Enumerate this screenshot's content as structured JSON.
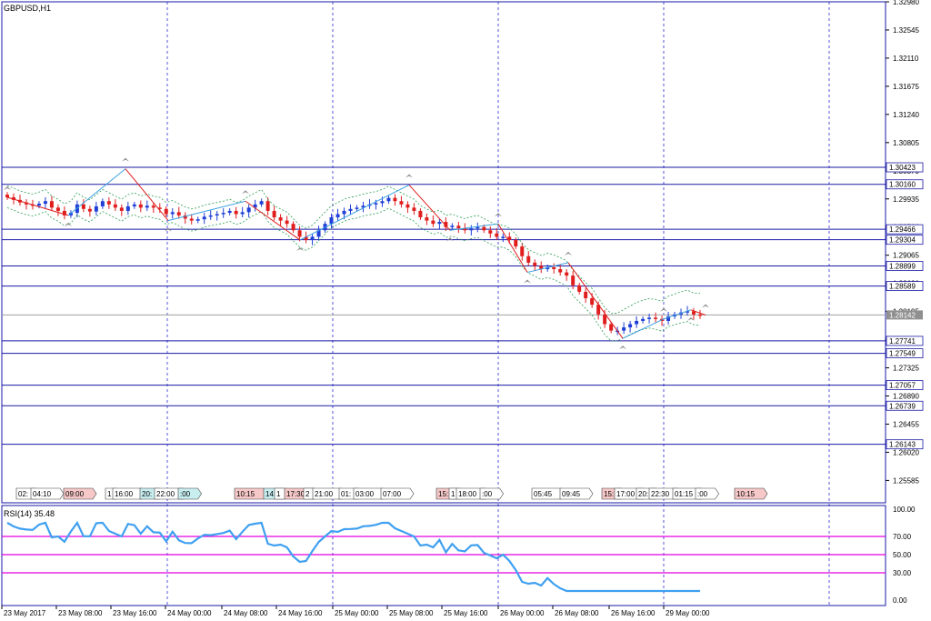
{
  "chart_title": "GBPUSD,H1",
  "rsi_label": "RSI(14) 35.48",
  "colors": {
    "axis": "#1a1aa6",
    "grid": "#2a2ad0",
    "bull": "#1f3fd6",
    "bear": "#e01e1e",
    "envelope": "#2e9d54",
    "zigzag_up": "#3aa0e0",
    "zigzag_down": "#e01e1e",
    "rsi_line": "#3fa0f0",
    "rsi_levels": "#e000e0",
    "current_price": "#a0a0a0"
  },
  "price_axis": {
    "ticks": [
      "1.32980",
      "1.32545",
      "1.32110",
      "1.31675",
      "1.31240",
      "1.30805",
      "1.30370",
      "1.29935",
      "1.29500",
      "1.29065",
      "1.28630",
      "1.28195",
      "1.27760",
      "1.27325",
      "1.26890",
      "1.26455",
      "1.26020",
      "1.25585"
    ],
    "min": 1.2538,
    "max": 1.3298
  },
  "horizontal_levels": [
    "1.30423",
    "1.30160",
    "1.29466",
    "1.29304",
    "1.28899",
    "1.28589",
    "1.27741",
    "1.27549",
    "1.27057",
    "1.26739",
    "1.26143"
  ],
  "current_price": "1.28142",
  "time_axis": [
    "23 May 2017",
    "23 May 08:00",
    "23 May 16:00",
    "24 May 00:00",
    "24 May 08:00",
    "24 May 16:00",
    "25 May 00:00",
    "25 May 08:00",
    "25 May 16:00",
    "26 May 00:00",
    "26 May 08:00",
    "26 May 16:00",
    "29 May 00:00"
  ],
  "time_labels": [
    {
      "text": "02:"
    },
    {
      "text": "04:10"
    },
    {
      "text": "09:00"
    },
    {
      "text": "1"
    },
    {
      "text": "16:00"
    },
    {
      "text": "20:"
    },
    {
      "text": "22:00"
    },
    {
      "text": ":00"
    },
    {
      "text": "10:15"
    },
    {
      "text": "14:"
    },
    {
      "text": "1"
    },
    {
      "text": "17:30"
    },
    {
      "text": "2"
    },
    {
      "text": "21:00"
    },
    {
      "text": "01:"
    },
    {
      "text": "03:00"
    },
    {
      "text": "07:00"
    },
    {
      "text": "15:"
    },
    {
      "text": "1"
    },
    {
      "text": "18:00"
    },
    {
      "text": ":00"
    },
    {
      "text": "05:45"
    },
    {
      "text": "09:45"
    },
    {
      "text": "15:"
    },
    {
      "text": "17:00"
    },
    {
      "text": "20:"
    },
    {
      "text": "22:30"
    },
    {
      "text": "01:15"
    },
    {
      "text": ":00"
    },
    {
      "text": "10:15"
    }
  ],
  "rsi_axis": [
    "100.00",
    "70.00",
    "50.00",
    "30.00",
    "0.00"
  ],
  "rsi_levels": [
    70,
    50,
    30
  ],
  "chart_data": {
    "type": "candlestick",
    "symbol": "GBPUSD",
    "timeframe": "H1",
    "indicator": "RSI(14)",
    "rsi_last": 35.48,
    "close_path": [
      1.2996,
      1.2992,
      1.2988,
      1.2985,
      1.2983,
      1.2986,
      1.299,
      1.298,
      1.2975,
      1.2968,
      1.2972,
      1.2985,
      1.2978,
      1.2974,
      1.2982,
      1.299,
      1.2985,
      1.298,
      1.2975,
      1.2982,
      1.2985,
      1.298,
      1.2983,
      1.298,
      1.2978,
      1.297,
      1.2973,
      1.2968,
      1.2963,
      1.296,
      1.2962,
      1.2966,
      1.2968,
      1.297,
      1.2972,
      1.2975,
      1.297,
      1.2973,
      1.298,
      1.2985,
      1.299,
      1.2975,
      1.2965,
      1.296,
      1.2955,
      1.2945,
      1.2935,
      1.293,
      1.2935,
      1.2945,
      1.2955,
      1.2965,
      1.297,
      1.2975,
      1.2978,
      1.298,
      1.2983,
      1.2985,
      1.2987,
      1.299,
      1.2995,
      1.299,
      1.2985,
      1.298,
      1.2975,
      1.2965,
      1.296,
      1.2955,
      1.2958,
      1.295,
      1.2952,
      1.2948,
      1.2945,
      1.2948,
      1.295,
      1.2945,
      1.294,
      1.2935,
      1.2935,
      1.293,
      1.292,
      1.2905,
      1.2895,
      1.289,
      1.2885,
      1.2888,
      1.2885,
      1.288,
      1.2875,
      1.286,
      1.285,
      1.284,
      1.283,
      1.2815,
      1.28,
      1.279,
      1.279,
      1.2795,
      1.28,
      1.2805,
      1.2808,
      1.281,
      1.2808,
      1.2805,
      1.2812,
      1.2815,
      1.2818,
      1.282,
      1.2815,
      1.2814
    ]
  }
}
